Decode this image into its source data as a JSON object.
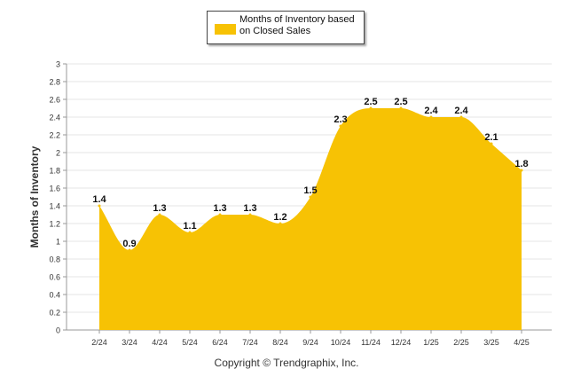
{
  "chart_data": {
    "type": "area",
    "categories": [
      "2/24",
      "3/24",
      "4/24",
      "5/24",
      "6/24",
      "7/24",
      "8/24",
      "9/24",
      "10/24",
      "11/24",
      "12/24",
      "1/25",
      "2/25",
      "3/25",
      "4/25"
    ],
    "series": [
      {
        "name": "Months of Inventory based on Closed Sales",
        "values": [
          1.4,
          0.9,
          1.3,
          1.1,
          1.3,
          1.3,
          1.2,
          1.5,
          2.3,
          2.5,
          2.5,
          2.4,
          2.4,
          2.1,
          1.8
        ]
      }
    ],
    "data_labels": [
      "1.4",
      "0.9",
      "1.3",
      "1.1",
      "1.3",
      "1.3",
      "1.2",
      "1.5",
      "2.3",
      "2.5",
      "2.5",
      "2.4",
      "2.4",
      "2.1",
      "1.8"
    ],
    "ylabel": "Months of Inventory",
    "ylim": [
      0,
      3
    ],
    "yticks": [
      0,
      0.2,
      0.4,
      0.6,
      0.8,
      1,
      1.2,
      1.4,
      1.6,
      1.8,
      2,
      2.2,
      2.4,
      2.6,
      2.8,
      3
    ],
    "ytick_labels": [
      "0",
      "0.2",
      "0.4",
      "0.6",
      "0.8",
      "1",
      "1.2",
      "1.4",
      "1.6",
      "1.8",
      "2",
      "2.2",
      "2.4",
      "2.6",
      "2.8",
      "3"
    ],
    "grid": true,
    "legend": "top-center",
    "fill_color": "#F7C204",
    "grid_color": "#E6E6E6"
  },
  "legend_label": "Months of Inventory based on Closed Sales",
  "copyright": "Copyright © Trendgraphix, Inc."
}
